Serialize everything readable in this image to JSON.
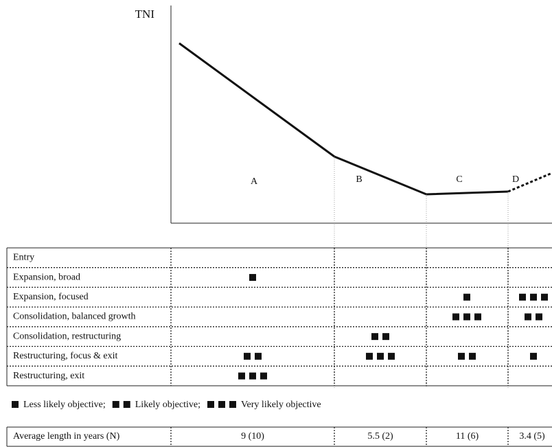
{
  "axis_label": "TNI",
  "phases": [
    "A",
    "B",
    "C",
    "D"
  ],
  "objectives": [
    {
      "label": "Entry",
      "levels": [
        0,
        0,
        0,
        0
      ]
    },
    {
      "label": "Expansion, broad",
      "levels": [
        1,
        0,
        0,
        0
      ]
    },
    {
      "label": "Expansion, focused",
      "levels": [
        0,
        0,
        1,
        3
      ]
    },
    {
      "label": "Consolidation, balanced growth",
      "levels": [
        0,
        0,
        3,
        2
      ]
    },
    {
      "label": "Consolidation, restructuring",
      "levels": [
        0,
        2,
        0,
        0
      ]
    },
    {
      "label": "Restructuring, focus & exit",
      "levels": [
        2,
        3,
        2,
        1
      ]
    },
    {
      "label": "Restructuring, exit",
      "levels": [
        3,
        0,
        0,
        0
      ]
    }
  ],
  "legend": [
    {
      "squares": 1,
      "label": "Less likely objective;"
    },
    {
      "squares": 2,
      "label": "Likely objective;"
    },
    {
      "squares": 3,
      "label": "Very likely objective"
    }
  ],
  "average_length": {
    "label": "Average length in years (N)",
    "values": [
      "9 (10)",
      "5.5 (2)",
      "11 (6)",
      "3.4 (5)"
    ]
  }
}
